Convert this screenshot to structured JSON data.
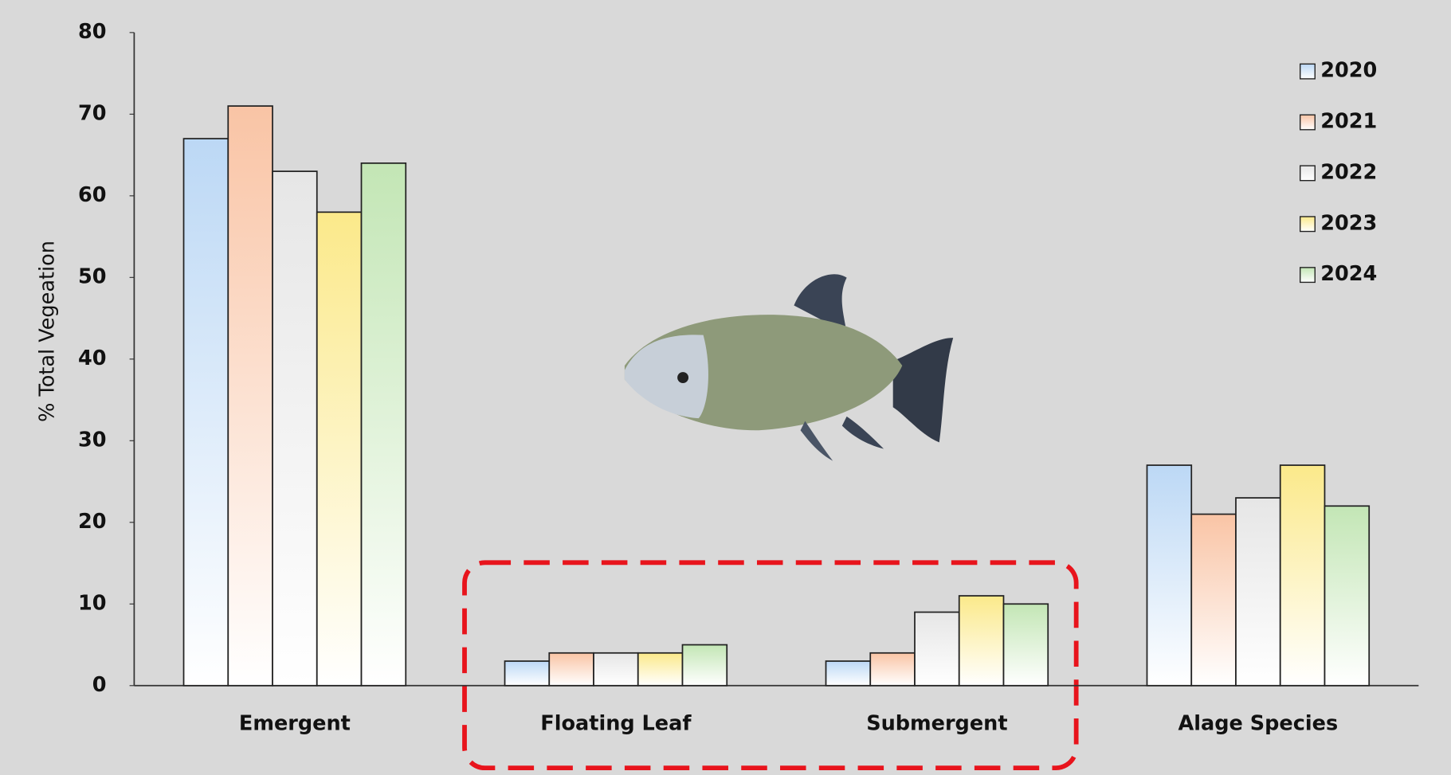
{
  "chart_data": {
    "type": "bar",
    "y_label": "% Total Vegeation",
    "categories": [
      "Emergent",
      "Floating Leaf",
      "Submergent",
      "Alage Species"
    ],
    "series": [
      {
        "name": "2020",
        "color": "#bcd8f5",
        "values": [
          67,
          3,
          3,
          27
        ]
      },
      {
        "name": "2021",
        "color": "#f9c4a5",
        "values": [
          71,
          4,
          4,
          21
        ]
      },
      {
        "name": "2022",
        "color": "#e6e6e6",
        "values": [
          63,
          4,
          9,
          23
        ]
      },
      {
        "name": "2023",
        "color": "#fbe98a",
        "values": [
          58,
          4,
          11,
          27
        ]
      },
      {
        "name": "2024",
        "color": "#c3e6b5",
        "values": [
          64,
          5,
          10,
          22
        ]
      }
    ],
    "ylim": [
      0,
      80
    ],
    "yticks": [
      0,
      10,
      20,
      30,
      40,
      50,
      60,
      70,
      80
    ],
    "grid": false,
    "legend": "top-right"
  }
}
